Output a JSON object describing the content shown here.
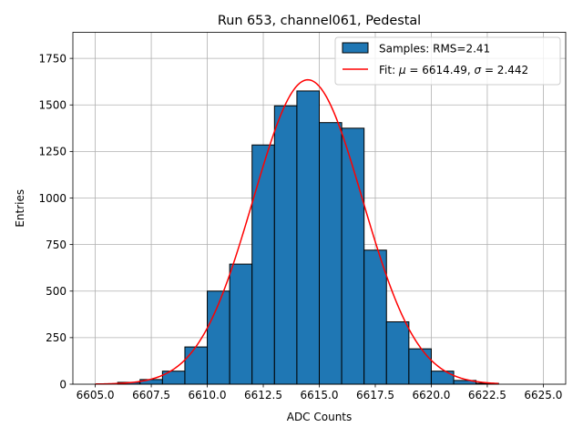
{
  "chart_data": {
    "type": "bar",
    "title": "Run 653, channel061, Pedestal",
    "xlabel": "ADC Counts",
    "ylabel": "Entries",
    "xlim": [
      6604.0,
      6626.0
    ],
    "ylim": [
      0,
      1890
    ],
    "xticks": [
      6605.0,
      6607.5,
      6610.0,
      6612.5,
      6615.0,
      6617.5,
      6620.0,
      6622.5,
      6625.0
    ],
    "xtick_labels": [
      "6605.0",
      "6607.5",
      "6610.0",
      "6612.5",
      "6615.0",
      "6617.5",
      "6620.0",
      "6622.5",
      "6625.0"
    ],
    "yticks": [
      0,
      250,
      500,
      750,
      1000,
      1250,
      1500,
      1750
    ],
    "ytick_labels": [
      "0",
      "250",
      "500",
      "750",
      "1000",
      "1250",
      "1500",
      "1750"
    ],
    "grid": true,
    "legend_position": "top-right",
    "histogram": {
      "name": "Samples: RMS=2.41",
      "color": "#1f77b4",
      "edge_color": "#000000",
      "bin_edges": [
        6606,
        6607,
        6608,
        6609,
        6610,
        6611,
        6612,
        6613,
        6614,
        6615,
        6616,
        6617,
        6618,
        6619,
        6620,
        6621,
        6622,
        6623
      ],
      "values": [
        10,
        25,
        70,
        200,
        500,
        645,
        1285,
        1495,
        1575,
        1405,
        1375,
        720,
        335,
        190,
        70,
        20,
        5
      ]
    },
    "fit": {
      "name_prefix": "Fit: ",
      "name_mu": "μ",
      "name_mid": " = 6614.49, ",
      "name_sigma": "σ",
      "name_suffix": " = 2.442",
      "color": "#ff0000",
      "mu": 6614.49,
      "sigma": 2.442,
      "amplitude": 1635,
      "x_range": [
        6605.0,
        6623.0
      ]
    }
  }
}
